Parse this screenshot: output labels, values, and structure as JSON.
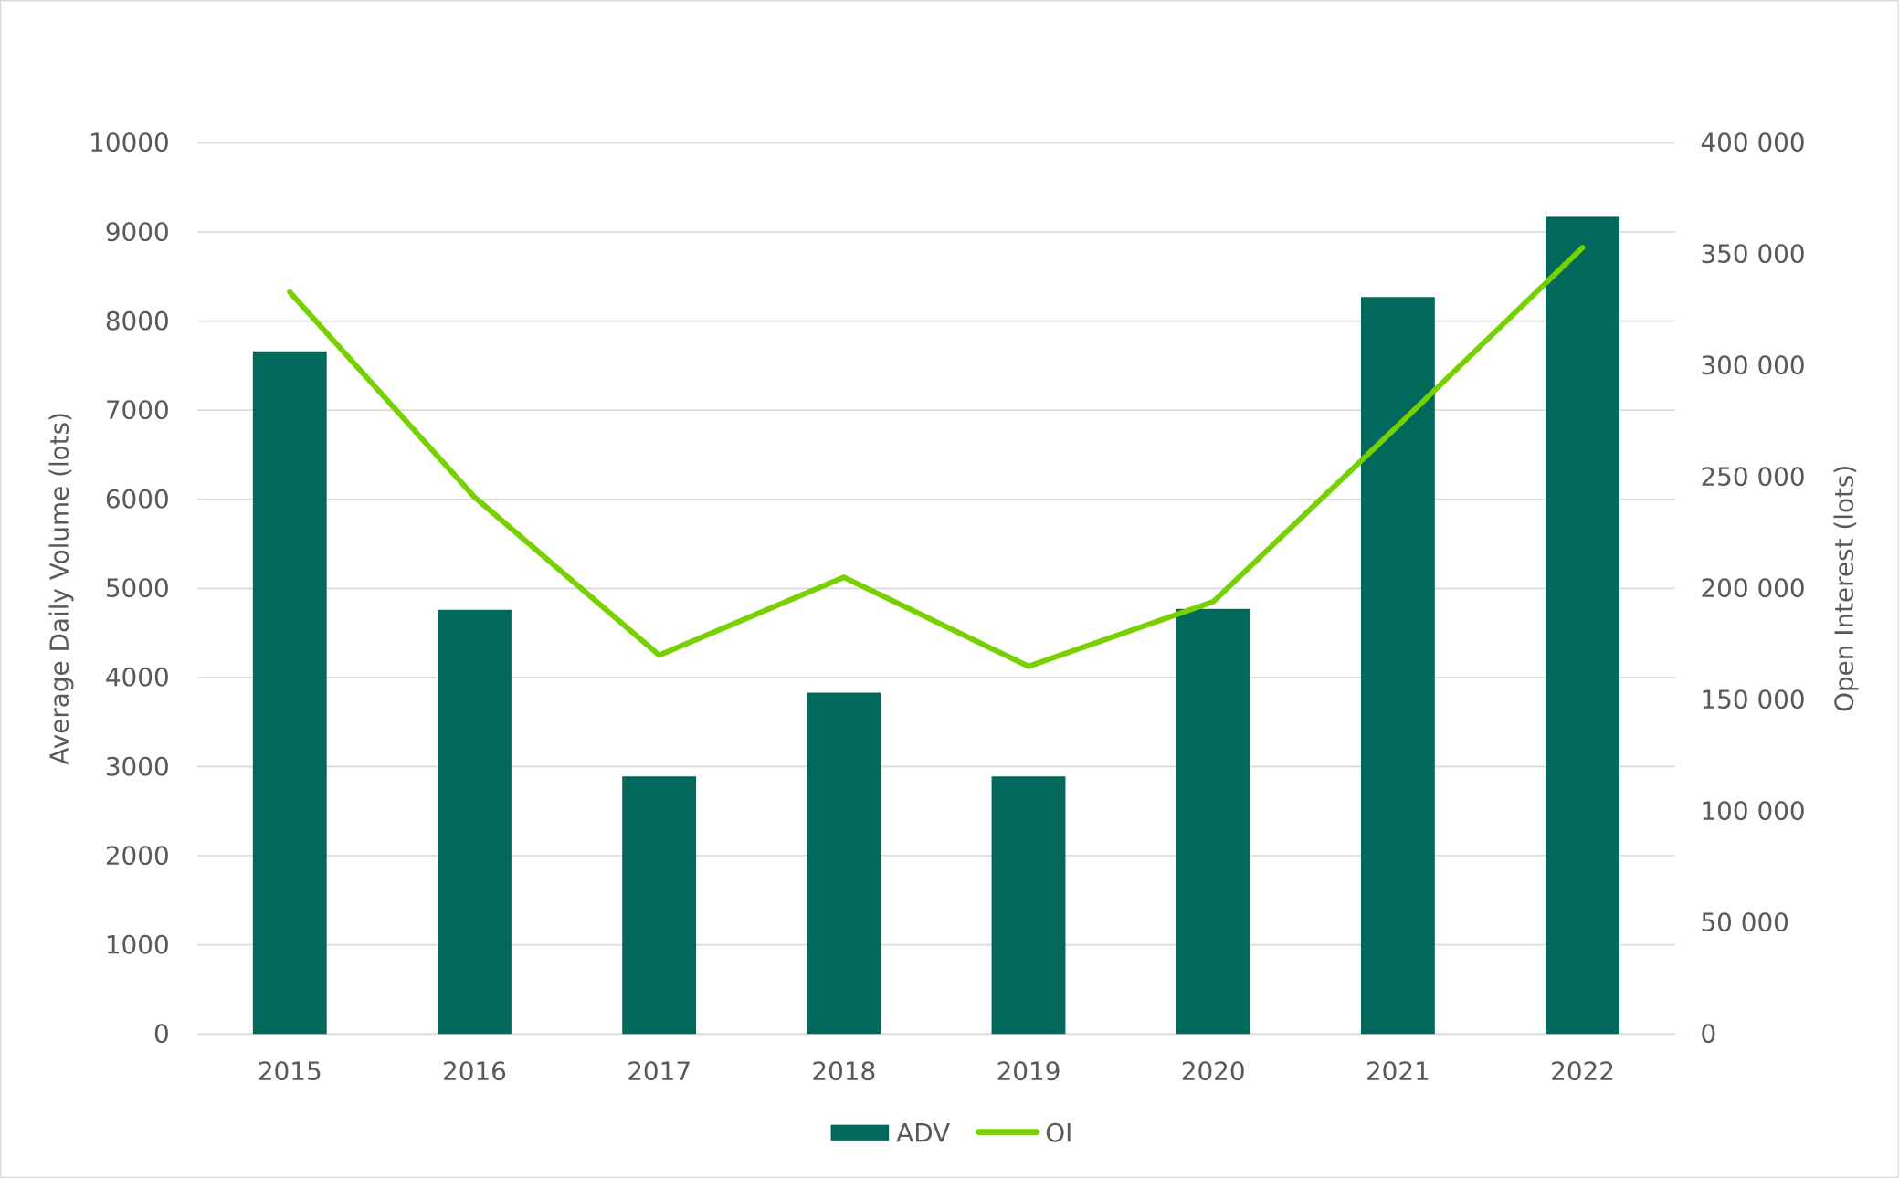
{
  "chart_data": {
    "type": "bar+line",
    "title": "",
    "categories": [
      "2015",
      "2016",
      "2017",
      "2018",
      "2019",
      "2020",
      "2021",
      "2022"
    ],
    "series": [
      {
        "name": "ADV",
        "type": "bar",
        "axis": "left",
        "color": "#00695C",
        "values": [
          7660,
          4760,
          2890,
          3830,
          2890,
          4770,
          8270,
          9170
        ]
      },
      {
        "name": "OI",
        "type": "line",
        "axis": "right",
        "color": "#77D000",
        "values": [
          333000,
          241000,
          170000,
          205000,
          165000,
          194000,
          273000,
          353000
        ]
      }
    ],
    "ylabel": "Average Daily Volume (lots)",
    "y2label": "Open Interest (lots)",
    "ylim": [
      0,
      10000
    ],
    "y2lim": [
      0,
      400000
    ],
    "yticks": [
      "0",
      "1000",
      "2000",
      "3000",
      "4000",
      "5000",
      "6000",
      "7000",
      "8000",
      "9000",
      "10000"
    ],
    "y2ticks": [
      "0",
      "50 000",
      "100 000",
      "150 000",
      "200 000",
      "250 000",
      "300 000",
      "350 000",
      "400 000"
    ],
    "grid": true,
    "legend_position": "bottom",
    "gridline_color": "#D9D9D9"
  }
}
